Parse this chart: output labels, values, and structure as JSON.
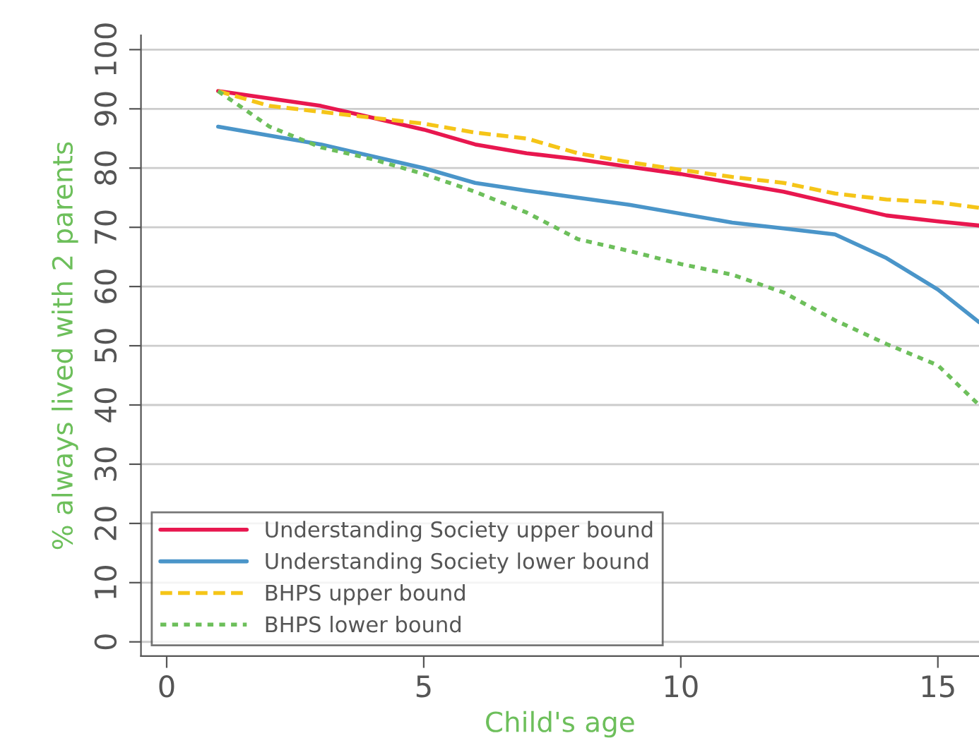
{
  "chart_data": {
    "type": "line",
    "xlabel": "Child's age",
    "ylabel": "% always lived with 2 parents",
    "xlim": [
      -0.5,
      15.8
    ],
    "xticks": [
      0,
      5,
      10,
      15
    ],
    "ylim": [
      -2.4,
      102.4
    ],
    "yticks": [
      0,
      10,
      20,
      30,
      40,
      50,
      60,
      70,
      80,
      90,
      100
    ],
    "grid": "y",
    "legend": "bottom left",
    "tick_labels": "xy",
    "series": [
      {
        "name": "Understanding Society upper bound",
        "color": "#e8174f",
        "line_style": "solid",
        "x": [
          1,
          3,
          5,
          6,
          7,
          8,
          9,
          10,
          11,
          12,
          13,
          14,
          15,
          15.8
        ],
        "values": [
          93,
          90.5,
          86.5,
          84,
          82.5,
          81.5,
          80.2,
          79,
          77.5,
          76,
          74,
          72,
          71,
          70.3
        ]
      },
      {
        "name": "Understanding Society lower bound",
        "color": "#4a95c9",
        "line_style": "solid",
        "x": [
          1,
          3,
          5,
          6,
          7,
          8,
          9,
          10,
          11,
          12,
          13,
          14,
          15,
          15.8
        ],
        "values": [
          87,
          84,
          80,
          77.5,
          76.2,
          75,
          73.8,
          72.3,
          70.8,
          69.8,
          68.8,
          64.8,
          59.5,
          54
        ]
      },
      {
        "name": "BHPS upper bound",
        "color": "#f5c518",
        "line_style": "dashed",
        "x": [
          1,
          2,
          3,
          4,
          5,
          6,
          7,
          8,
          9,
          10,
          11,
          12,
          13,
          14,
          15,
          15.8
        ],
        "values": [
          93,
          90.5,
          89.5,
          88.5,
          87.5,
          86,
          85,
          82.5,
          81,
          79.7,
          78.5,
          77.5,
          75.7,
          74.7,
          74.2,
          73.3
        ]
      },
      {
        "name": "BHPS lower bound",
        "color": "#6dbf5b",
        "line_style": "dotted",
        "x": [
          1,
          2,
          3,
          4,
          5,
          6,
          7,
          8,
          9,
          10,
          11,
          12,
          13,
          14,
          15,
          15.8
        ],
        "values": [
          93,
          87,
          83.5,
          81.5,
          79,
          76,
          72.5,
          68,
          66,
          63.8,
          62,
          59,
          54.3,
          50.3,
          46.7,
          40
        ]
      }
    ]
  }
}
